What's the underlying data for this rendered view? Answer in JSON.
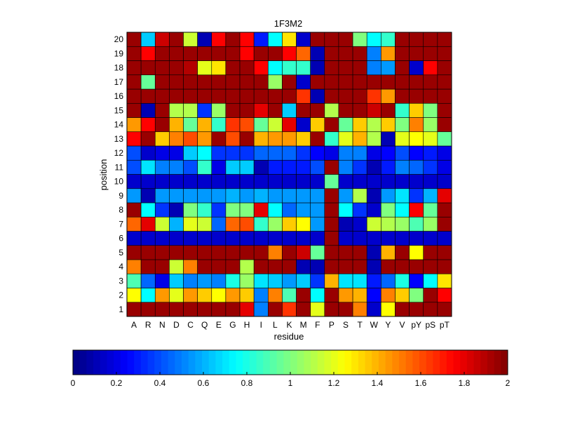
{
  "chart_data": {
    "type": "heatmap",
    "title": "1F3M2",
    "xlabel": "residue",
    "ylabel": "position",
    "x_categories": [
      "A",
      "R",
      "N",
      "D",
      "C",
      "Q",
      "E",
      "G",
      "H",
      "I",
      "L",
      "K",
      "M",
      "F",
      "P",
      "S",
      "T",
      "W",
      "Y",
      "V",
      "pY",
      "pS",
      "pT"
    ],
    "y_categories": [
      1,
      2,
      3,
      4,
      5,
      6,
      7,
      8,
      9,
      10,
      11,
      12,
      13,
      14,
      15,
      16,
      17,
      18,
      19,
      20
    ],
    "colorbar": {
      "colormap": "jet",
      "range": [
        0,
        2
      ],
      "ticks": [
        "0",
        "0.2",
        "0.4",
        "0.6",
        "0.8",
        "1",
        "1.2",
        "1.4",
        "1.6",
        "1.8",
        "2"
      ]
    },
    "grid": true,
    "values": [
      [
        1.95,
        1.95,
        1.95,
        1.95,
        1.95,
        1.95,
        1.95,
        1.95,
        1.8,
        0.5,
        1.95,
        1.65,
        1.95,
        1.2,
        1.95,
        1.95,
        1.5,
        0.15,
        1.25,
        1.95,
        1.95,
        1.95,
        1.95
      ],
      [
        1.25,
        0.75,
        1.45,
        1.2,
        1.45,
        1.35,
        1.25,
        1.45,
        1.35,
        0.5,
        1.5,
        0.9,
        1.95,
        0.75,
        1.95,
        1.45,
        1.4,
        0.25,
        1.5,
        1.35,
        1.0,
        1.95,
        1.75
      ],
      [
        0.9,
        0.45,
        0.2,
        0.65,
        0.5,
        0.55,
        0.5,
        0.8,
        1.05,
        0.7,
        0.65,
        0.55,
        0.65,
        0.35,
        1.4,
        0.7,
        0.7,
        0.3,
        0.45,
        0.8,
        0.25,
        0.75,
        1.3
      ],
      [
        1.5,
        1.95,
        1.95,
        1.15,
        1.5,
        1.95,
        1.95,
        1.95,
        1.1,
        1.95,
        1.95,
        1.95,
        0.1,
        0.1,
        1.95,
        1.95,
        1.95,
        0.1,
        1.95,
        1.95,
        1.95,
        1.95,
        1.95
      ],
      [
        1.95,
        1.95,
        1.95,
        1.95,
        1.95,
        1.95,
        1.95,
        1.95,
        1.95,
        1.95,
        1.5,
        1.95,
        1.85,
        0.95,
        1.95,
        1.95,
        1.95,
        0.1,
        1.4,
        1.95,
        1.25,
        1.95,
        1.95
      ],
      [
        0.15,
        0.15,
        0.15,
        0.15,
        0.15,
        0.15,
        0.15,
        0.15,
        0.15,
        0.15,
        0.15,
        0.15,
        0.15,
        0.15,
        1.95,
        0.15,
        0.15,
        0.15,
        0.15,
        0.15,
        0.15,
        0.15,
        0.15
      ],
      [
        1.55,
        1.8,
        1.15,
        0.6,
        1.2,
        1.15,
        0.45,
        1.55,
        1.6,
        0.85,
        1.05,
        1.35,
        1.25,
        0.55,
        1.95,
        0.1,
        0.15,
        1.15,
        1.1,
        1.05,
        0.9,
        1.05,
        1.95
      ],
      [
        1.95,
        0.75,
        0.35,
        0.1,
        1.0,
        0.85,
        0.35,
        1.0,
        1.0,
        1.8,
        0.75,
        0.45,
        0.55,
        0.55,
        1.95,
        0.75,
        0.35,
        0.15,
        1.0,
        0.75,
        1.75,
        0.95,
        1.95
      ],
      [
        0.55,
        0.1,
        0.55,
        0.55,
        0.55,
        0.55,
        0.55,
        0.6,
        0.55,
        0.6,
        0.55,
        0.55,
        0.55,
        0.55,
        1.95,
        0.55,
        1.1,
        0.1,
        0.55,
        0.7,
        0.35,
        0.6,
        1.8
      ],
      [
        0.15,
        0.15,
        0.15,
        0.15,
        0.15,
        0.15,
        0.15,
        0.15,
        0.15,
        0.15,
        0.15,
        0.15,
        0.15,
        0.15,
        0.95,
        0.15,
        0.15,
        0.15,
        0.15,
        0.15,
        0.15,
        0.15,
        0.15
      ],
      [
        0.4,
        0.7,
        0.5,
        0.5,
        0.4,
        0.85,
        0.2,
        0.65,
        0.65,
        0.1,
        0.3,
        0.3,
        0.3,
        0.4,
        1.95,
        0.5,
        0.35,
        0.1,
        0.3,
        0.5,
        0.45,
        0.35,
        0.2
      ],
      [
        0.4,
        0.15,
        0.2,
        0.2,
        0.65,
        0.75,
        0.35,
        0.35,
        0.35,
        0.45,
        0.45,
        0.45,
        0.35,
        0.25,
        0.2,
        0.5,
        0.5,
        0.2,
        0.25,
        0.4,
        0.25,
        0.3,
        0.2
      ],
      [
        1.75,
        1.95,
        1.35,
        1.5,
        1.6,
        1.45,
        1.95,
        1.6,
        1.95,
        1.4,
        1.45,
        1.45,
        1.35,
        1.95,
        0.85,
        1.2,
        1.4,
        1.1,
        0.1,
        1.2,
        1.25,
        1.2,
        0.95
      ],
      [
        1.45,
        1.75,
        1.95,
        1.4,
        0.95,
        1.4,
        0.85,
        1.65,
        1.6,
        0.95,
        1.15,
        1.8,
        0.15,
        1.35,
        1.95,
        0.95,
        1.35,
        1.1,
        1.35,
        1.0,
        1.5,
        1.05,
        1.95
      ],
      [
        1.95,
        0.1,
        1.95,
        1.1,
        1.1,
        0.35,
        1.05,
        1.95,
        1.95,
        1.8,
        1.95,
        0.65,
        1.95,
        1.95,
        1.1,
        1.95,
        1.95,
        1.85,
        1.95,
        0.85,
        1.35,
        1.0,
        1.95
      ],
      [
        1.95,
        1.95,
        1.95,
        1.95,
        1.95,
        1.95,
        1.95,
        1.95,
        1.95,
        1.95,
        1.95,
        1.95,
        1.65,
        0.1,
        1.95,
        1.95,
        1.95,
        1.65,
        1.45,
        1.95,
        1.95,
        1.95,
        1.95
      ],
      [
        1.95,
        0.95,
        1.95,
        1.95,
        1.95,
        1.95,
        1.95,
        1.95,
        1.95,
        1.95,
        1.05,
        1.95,
        0.15,
        1.95,
        1.95,
        1.95,
        1.95,
        1.95,
        1.95,
        1.95,
        1.95,
        1.95,
        1.95
      ],
      [
        1.95,
        1.95,
        1.95,
        1.95,
        1.9,
        1.2,
        1.3,
        1.95,
        1.95,
        1.75,
        0.75,
        0.85,
        0.85,
        0.1,
        1.95,
        1.95,
        1.95,
        0.5,
        0.55,
        1.95,
        0.15,
        1.75,
        1.95
      ],
      [
        1.95,
        1.75,
        1.95,
        1.95,
        1.95,
        1.95,
        1.95,
        1.95,
        1.75,
        1.95,
        1.95,
        1.75,
        1.55,
        0.1,
        1.95,
        1.95,
        1.95,
        0.5,
        1.45,
        1.95,
        1.95,
        1.95,
        1.95
      ],
      [
        1.95,
        0.65,
        1.85,
        1.95,
        1.15,
        0.1,
        1.75,
        1.95,
        1.75,
        0.3,
        0.75,
        1.3,
        0.15,
        1.95,
        1.95,
        1.95,
        1.0,
        0.75,
        0.85,
        1.95,
        1.95,
        1.95,
        1.95
      ]
    ]
  }
}
